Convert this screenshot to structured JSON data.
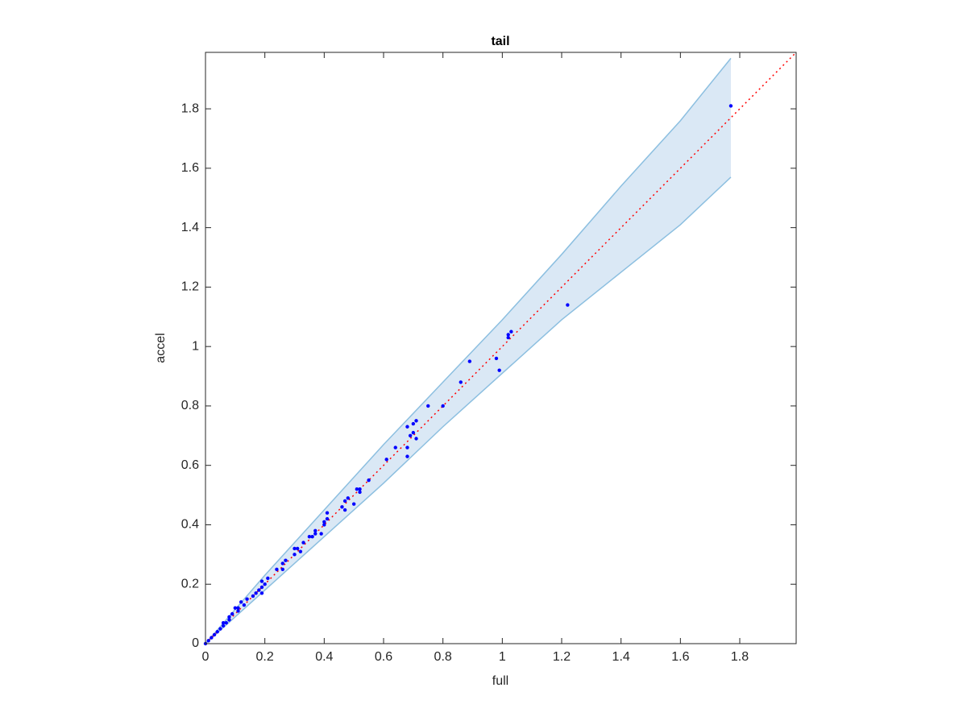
{
  "chart_data": {
    "type": "scatter",
    "title": "tail",
    "xlabel": "full",
    "ylabel": "accel",
    "xlim": [
      0,
      1.99
    ],
    "ylim": [
      0,
      1.99
    ],
    "xticks": [
      0,
      0.2,
      0.4,
      0.6,
      0.8,
      1,
      1.2,
      1.4,
      1.6,
      1.8
    ],
    "yticks": [
      0,
      0.2,
      0.4,
      0.6,
      0.8,
      1,
      1.2,
      1.4,
      1.6,
      1.8
    ],
    "box": true,
    "band": {
      "x": [
        0,
        0.2,
        0.4,
        0.6,
        0.8,
        1.0,
        1.2,
        1.4,
        1.6,
        1.77
      ],
      "upper": [
        0,
        0.23,
        0.45,
        0.67,
        0.88,
        1.09,
        1.31,
        1.54,
        1.76,
        1.97
      ],
      "lower": [
        0,
        0.18,
        0.36,
        0.54,
        0.73,
        0.91,
        1.09,
        1.25,
        1.41,
        1.57
      ],
      "color": "#dae8f5",
      "edge_color": "#8cbfe0"
    },
    "reference_line": {
      "x": [
        0,
        1.99
      ],
      "y": [
        0,
        1.99
      ],
      "color": "#ff0000"
    },
    "points": {
      "color": "#0000ff",
      "x": [
        1.77,
        1.22,
        1.03,
        1.02,
        1.02,
        0.99,
        0.98,
        0.89,
        0.86,
        0.8,
        0.75,
        0.71,
        0.7,
        0.7,
        0.69,
        0.71,
        0.68,
        0.68,
        0.68,
        0.64,
        0.61,
        0.55,
        0.52,
        0.51,
        0.52,
        0.5,
        0.48,
        0.47,
        0.47,
        0.46,
        0.41,
        0.41,
        0.4,
        0.4,
        0.39,
        0.37,
        0.37,
        0.36,
        0.35,
        0.33,
        0.32,
        0.31,
        0.3,
        0.3,
        0.27,
        0.26,
        0.26,
        0.24,
        0.21,
        0.2,
        0.19,
        0.19,
        0.19,
        0.18,
        0.17,
        0.16,
        0.14,
        0.13,
        0.12,
        0.11,
        0.11,
        0.1,
        0.09,
        0.08,
        0.08,
        0.07,
        0.06,
        0.06,
        0.05,
        0.04,
        0.03,
        0.02,
        0.01,
        0.0
      ],
      "y": [
        1.81,
        1.14,
        1.05,
        1.04,
        1.03,
        0.92,
        0.96,
        0.95,
        0.88,
        0.8,
        0.8,
        0.75,
        0.74,
        0.71,
        0.7,
        0.69,
        0.73,
        0.66,
        0.63,
        0.66,
        0.62,
        0.55,
        0.52,
        0.52,
        0.51,
        0.47,
        0.49,
        0.48,
        0.45,
        0.46,
        0.44,
        0.42,
        0.41,
        0.4,
        0.37,
        0.38,
        0.37,
        0.36,
        0.36,
        0.34,
        0.31,
        0.32,
        0.32,
        0.3,
        0.28,
        0.27,
        0.25,
        0.25,
        0.22,
        0.2,
        0.21,
        0.19,
        0.17,
        0.18,
        0.17,
        0.16,
        0.15,
        0.13,
        0.14,
        0.12,
        0.11,
        0.12,
        0.1,
        0.09,
        0.08,
        0.07,
        0.07,
        0.06,
        0.05,
        0.04,
        0.03,
        0.02,
        0.01,
        0.0
      ]
    }
  }
}
